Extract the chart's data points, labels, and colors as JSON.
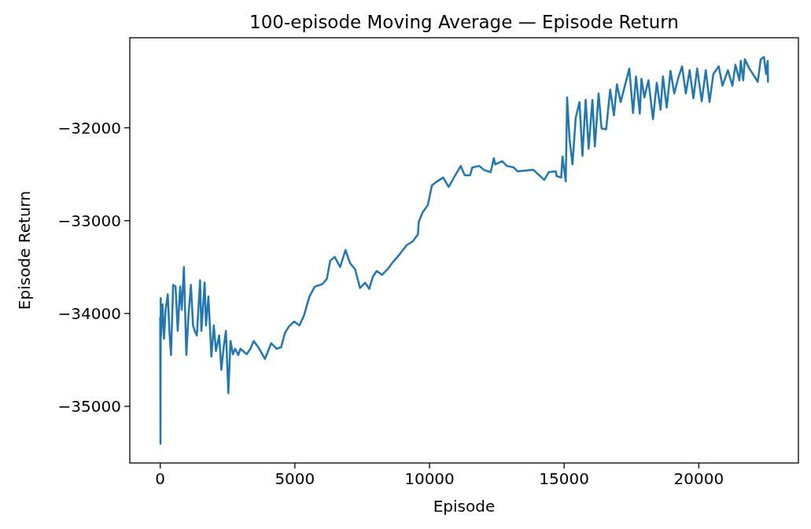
{
  "chart_data": {
    "type": "line",
    "title": "100-episode Moving Average — Episode Return",
    "xlabel": "Episode",
    "ylabel": "Episode Return",
    "xlim": [
      -1130,
      23700
    ],
    "xticks": [
      0,
      5000,
      10000,
      15000,
      20000
    ],
    "ylim": [
      -35610,
      -31030
    ],
    "yticks": [
      {
        "value": -35000,
        "label": "−35000"
      },
      {
        "value": -34000,
        "label": "−34000"
      },
      {
        "value": -33000,
        "label": "−33000"
      },
      {
        "value": -32000,
        "label": "−32000"
      }
    ],
    "grid": false,
    "marker": "none",
    "line_style": "solid",
    "series": [
      {
        "color": "#1f77b4",
        "x": [
          0,
          10,
          20,
          30,
          85,
          140,
          200,
          280,
          340,
          400,
          480,
          570,
          650,
          740,
          800,
          880,
          970,
          1050,
          1140,
          1220,
          1280,
          1360,
          1480,
          1530,
          1650,
          1700,
          1790,
          1900,
          1990,
          2070,
          2190,
          2270,
          2360,
          2440,
          2500,
          2530,
          2610,
          2700,
          2780,
          2900,
          2980,
          3210,
          3350,
          3470,
          3640,
          3890,
          4120,
          4320,
          4490,
          4630,
          4770,
          4970,
          5170,
          5340,
          5540,
          5740,
          6020,
          6190,
          6310,
          6480,
          6680,
          6880,
          7050,
          7240,
          7420,
          7610,
          7760,
          7900,
          8040,
          8240,
          8440,
          8610,
          8860,
          9150,
          9380,
          9570,
          9600,
          9740,
          9940,
          10090,
          10280,
          10510,
          10710,
          10940,
          11160,
          11310,
          11510,
          11590,
          11850,
          12020,
          12270,
          12390,
          12440,
          12700,
          12870,
          13130,
          13270,
          13860,
          14260,
          14430,
          14690,
          14720,
          14890,
          14940,
          15060,
          15110,
          15200,
          15310,
          15430,
          15570,
          15680,
          15800,
          15910,
          16050,
          16140,
          16280,
          16390,
          16560,
          16710,
          16850,
          16960,
          17100,
          17270,
          17420,
          17560,
          17670,
          17810,
          17870,
          17980,
          18130,
          18300,
          18440,
          18580,
          18670,
          18810,
          18950,
          19090,
          19230,
          19380,
          19520,
          19660,
          19800,
          19940,
          20110,
          20260,
          20400,
          20540,
          20740,
          20880,
          21080,
          21250,
          21360,
          21510,
          21560,
          21650,
          21710,
          21880,
          22070,
          22190,
          22300,
          22420,
          22500,
          22560,
          22570
        ],
        "values": [
          -34045,
          -35402,
          -33835,
          -34237,
          -33902,
          -34271,
          -33961,
          -33793,
          -34187,
          -34447,
          -33693,
          -33710,
          -34187,
          -33710,
          -33961,
          -33500,
          -34447,
          -34020,
          -33693,
          -34129,
          -34187,
          -34237,
          -33642,
          -34187,
          -33668,
          -34129,
          -33818,
          -34464,
          -34129,
          -34405,
          -34237,
          -34606,
          -34355,
          -34187,
          -34631,
          -34858,
          -34296,
          -34439,
          -34380,
          -34447,
          -34380,
          -34439,
          -34380,
          -34296,
          -34363,
          -34489,
          -34321,
          -34380,
          -34363,
          -34212,
          -34145,
          -34087,
          -34129,
          -34020,
          -33818,
          -33710,
          -33684,
          -33626,
          -33433,
          -33391,
          -33500,
          -33316,
          -33458,
          -33525,
          -33726,
          -33668,
          -33735,
          -33601,
          -33542,
          -33584,
          -33525,
          -33458,
          -33374,
          -33265,
          -33223,
          -33148,
          -33014,
          -32913,
          -32830,
          -32620,
          -32578,
          -32536,
          -32637,
          -32520,
          -32411,
          -32511,
          -32511,
          -32427,
          -32411,
          -32453,
          -32478,
          -32327,
          -32394,
          -32360,
          -32411,
          -32427,
          -32469,
          -32453,
          -32561,
          -32478,
          -32469,
          -32520,
          -32536,
          -32310,
          -32578,
          -31673,
          -32117,
          -32394,
          -31891,
          -31723,
          -32302,
          -31698,
          -32226,
          -31698,
          -32201,
          -31631,
          -32008,
          -32017,
          -31589,
          -31866,
          -31531,
          -31723,
          -31531,
          -31363,
          -31841,
          -31447,
          -31849,
          -31472,
          -31673,
          -31489,
          -31908,
          -31514,
          -31807,
          -31447,
          -31782,
          -31388,
          -31631,
          -31472,
          -31338,
          -31631,
          -31380,
          -31682,
          -31363,
          -31715,
          -31380,
          -31723,
          -31422,
          -31338,
          -31547,
          -31380,
          -31547,
          -31321,
          -31489,
          -31279,
          -31489,
          -31262,
          -31363,
          -31447,
          -31505,
          -31262,
          -31237,
          -31422,
          -31279,
          -31505
        ]
      }
    ]
  }
}
